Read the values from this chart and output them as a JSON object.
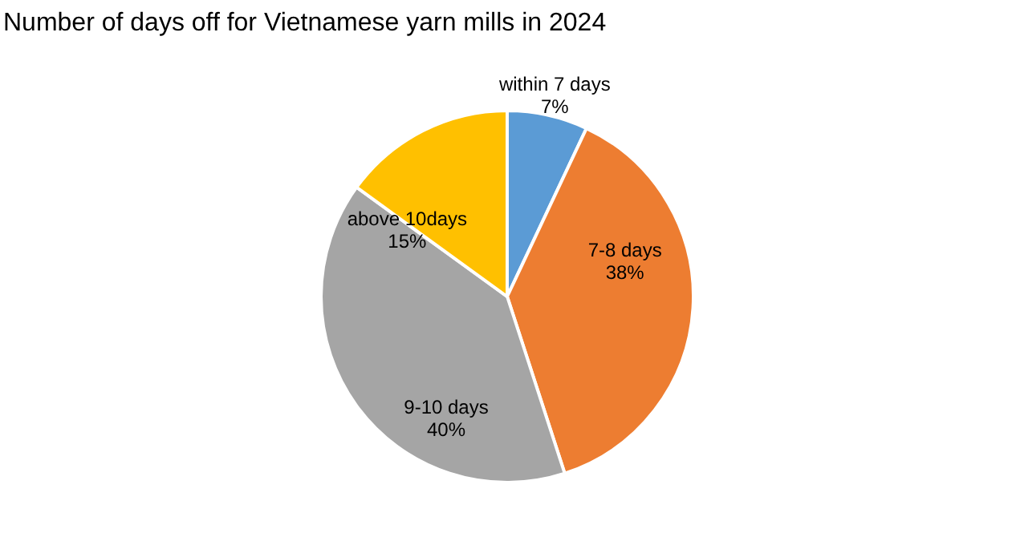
{
  "chart_data": {
    "type": "pie",
    "title": "Number of days off for Vietnamese yarn mills in 2024",
    "categories": [
      "within 7 days",
      "7-8 days",
      "9-10 days",
      "above 10days"
    ],
    "values": [
      7,
      38,
      40,
      15
    ],
    "colors": [
      "#5b9bd5",
      "#ed7d31",
      "#a5a5a5",
      "#ffc000"
    ],
    "value_labels": [
      "7%",
      "38%",
      "40%",
      "15%"
    ],
    "legend": false
  }
}
